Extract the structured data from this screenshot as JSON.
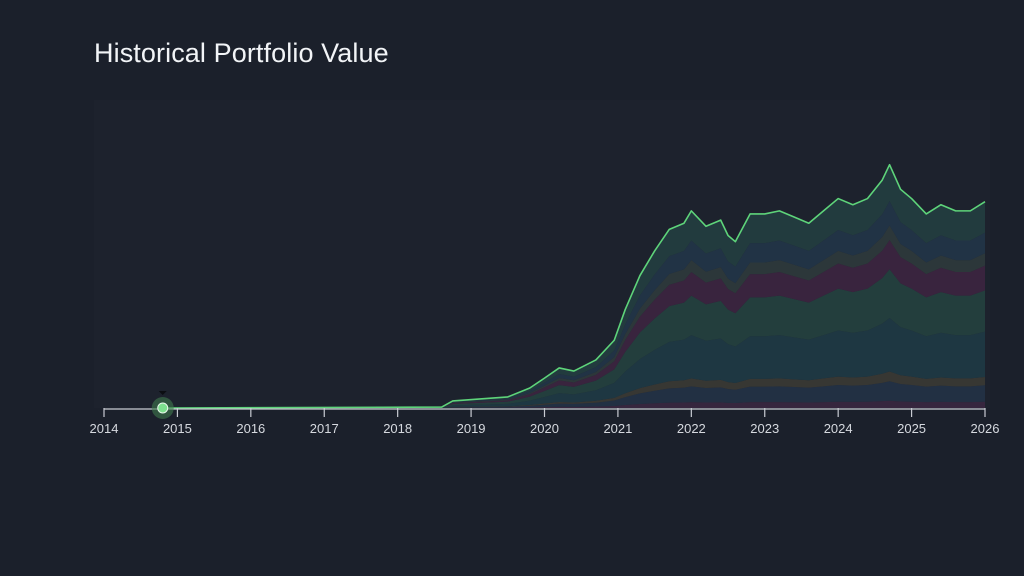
{
  "title": "Historical Portfolio Value",
  "chart_data": {
    "type": "area",
    "title": "Historical Portfolio Value",
    "xlabel": "",
    "ylabel": "",
    "xlim": [
      2014,
      2026
    ],
    "ylim": [
      0,
      100
    ],
    "x_ticks": [
      "2014",
      "2015",
      "2016",
      "2017",
      "2018",
      "2019",
      "2020",
      "2021",
      "2022",
      "2023",
      "2024",
      "2025",
      "2026"
    ],
    "grid": false,
    "y_axis_labels_shown": false,
    "total_line": {
      "color": "#5ed47a",
      "x": [
        2014.8,
        2018.6,
        2018.75,
        2019.5,
        2019.8,
        2020.0,
        2020.2,
        2020.4,
        2020.7,
        2020.95,
        2021.1,
        2021.3,
        2021.5,
        2021.7,
        2021.9,
        2022.0,
        2022.2,
        2022.4,
        2022.5,
        2022.6,
        2022.8,
        2023.0,
        2023.2,
        2023.4,
        2023.6,
        2023.8,
        2024.0,
        2024.2,
        2024.4,
        2024.6,
        2024.7,
        2024.85,
        2025.0,
        2025.2,
        2025.4,
        2025.6,
        2025.8,
        2026.0
      ],
      "y": [
        0,
        0.3,
        2.3,
        3.6,
        6.5,
        9.7,
        13,
        12,
        15.6,
        22,
        32,
        43,
        51,
        58,
        60,
        64,
        59,
        61,
        56,
        54,
        63,
        63,
        64,
        62,
        60,
        64,
        68,
        66,
        68,
        74,
        79,
        71,
        68,
        63,
        66,
        64,
        64,
        67
      ]
    },
    "stacked_series_share": [
      {
        "color": "#3a2740",
        "share": 0.03
      },
      {
        "color": "#243246",
        "share": 0.08
      },
      {
        "color": "#3b3a34",
        "share": 0.04
      },
      {
        "color": "#1f3a45",
        "share": 0.22
      },
      {
        "color": "#25413f",
        "share": 0.2
      },
      {
        "color": "#3d2540",
        "share": 0.12
      },
      {
        "color": "#2f3a3c",
        "share": 0.06
      },
      {
        "color": "#223548",
        "share": 0.1
      },
      {
        "color": "#233e40",
        "share": 0.15
      }
    ],
    "marker": {
      "x": 2014.8,
      "y": 0,
      "color": "#7ee08f"
    }
  }
}
